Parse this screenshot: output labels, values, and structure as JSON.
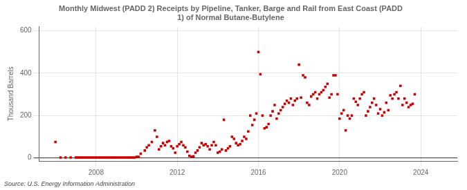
{
  "chart_data": {
    "type": "scatter",
    "title": "Monthly Midwest (PADD 2) Receipts by Pipeline, Tanker, Barge and Rail from East Coast (PADD\n1) of Normal Butane-Butylene",
    "ylabel": "Thousand Barrels",
    "source": "Source: U.S. Energy Information Administration",
    "color": "#cc0000",
    "marker": "square",
    "grid": true,
    "ylim": [
      -15,
      620
    ],
    "yticks": [
      0,
      200,
      400,
      600
    ],
    "xlim": [
      2005.2,
      2025.8
    ],
    "xticks": [
      2008,
      2012,
      2016,
      2020,
      2024
    ],
    "x": [
      2006.0,
      2006.25,
      2006.5,
      2006.75,
      2007.0,
      2007.1,
      2007.2,
      2007.3,
      2007.4,
      2007.5,
      2007.6,
      2007.7,
      2007.8,
      2007.9,
      2008.0,
      2008.1,
      2008.2,
      2008.3,
      2008.4,
      2008.5,
      2008.6,
      2008.7,
      2008.8,
      2008.9,
      2009.0,
      2009.1,
      2009.2,
      2009.3,
      2009.4,
      2009.5,
      2009.6,
      2009.7,
      2009.8,
      2009.9,
      2010.0,
      2010.1,
      2010.2,
      2010.4,
      2010.5,
      2010.6,
      2010.75,
      2010.9,
      2011.0,
      2011.1,
      2011.2,
      2011.3,
      2011.4,
      2011.5,
      2011.6,
      2011.7,
      2011.8,
      2011.9,
      2012.0,
      2012.1,
      2012.2,
      2012.3,
      2012.4,
      2012.5,
      2012.6,
      2012.7,
      2012.8,
      2012.9,
      2013.0,
      2013.1,
      2013.2,
      2013.3,
      2013.4,
      2013.5,
      2013.6,
      2013.7,
      2013.8,
      2013.9,
      2014.0,
      2014.1,
      2014.2,
      2014.3,
      2014.4,
      2014.5,
      2014.6,
      2014.7,
      2014.8,
      2014.9,
      2015.0,
      2015.1,
      2015.2,
      2015.3,
      2015.4,
      2015.5,
      2015.6,
      2015.7,
      2015.8,
      2015.9,
      2016.0,
      2016.1,
      2016.2,
      2016.3,
      2016.4,
      2016.5,
      2016.6,
      2016.7,
      2016.8,
      2016.9,
      2017.0,
      2017.1,
      2017.2,
      2017.3,
      2017.4,
      2017.5,
      2017.6,
      2017.7,
      2017.8,
      2017.9,
      2018.0,
      2018.1,
      2018.2,
      2018.3,
      2018.4,
      2018.5,
      2018.6,
      2018.7,
      2018.8,
      2018.9,
      2019.0,
      2019.1,
      2019.2,
      2019.3,
      2019.4,
      2019.5,
      2019.6,
      2019.7,
      2019.8,
      2019.9,
      2020.0,
      2020.1,
      2020.2,
      2020.3,
      2020.4,
      2020.5,
      2020.6,
      2020.7,
      2020.8,
      2020.9,
      2021.0,
      2021.1,
      2021.2,
      2021.3,
      2021.4,
      2021.5,
      2021.6,
      2021.7,
      2021.8,
      2021.9,
      2022.0,
      2022.1,
      2022.2,
      2022.3,
      2022.4,
      2022.5,
      2022.6,
      2022.7,
      2022.8,
      2022.9,
      2023.0,
      2023.1,
      2023.2,
      2023.3,
      2023.4,
      2023.5,
      2023.6,
      2023.7
    ],
    "values": [
      75,
      2,
      2,
      2,
      2,
      2,
      2,
      2,
      2,
      2,
      2,
      2,
      2,
      2,
      2,
      2,
      2,
      2,
      2,
      2,
      2,
      2,
      2,
      2,
      2,
      2,
      2,
      2,
      2,
      2,
      2,
      2,
      2,
      2,
      5,
      5,
      20,
      35,
      50,
      60,
      75,
      130,
      100,
      40,
      55,
      70,
      60,
      75,
      80,
      55,
      45,
      25,
      55,
      65,
      75,
      60,
      50,
      30,
      10,
      5,
      8,
      25,
      35,
      50,
      70,
      60,
      65,
      55,
      40,
      60,
      75,
      60,
      25,
      30,
      40,
      180,
      35,
      45,
      55,
      100,
      90,
      70,
      60,
      65,
      80,
      100,
      90,
      125,
      200,
      155,
      180,
      210,
      500,
      395,
      200,
      140,
      145,
      160,
      200,
      220,
      250,
      185,
      210,
      225,
      240,
      255,
      270,
      260,
      280,
      250,
      270,
      280,
      440,
      285,
      390,
      380,
      260,
      250,
      290,
      300,
      310,
      280,
      300,
      310,
      320,
      335,
      350,
      285,
      300,
      390,
      390,
      300,
      185,
      210,
      225,
      130,
      200,
      185,
      200,
      280,
      265,
      250,
      280,
      300,
      310,
      200,
      220,
      240,
      260,
      280,
      250,
      210,
      230,
      200,
      215,
      260,
      225,
      295,
      280,
      300,
      310,
      280,
      340,
      250,
      280,
      260,
      240,
      250,
      255,
      300
    ]
  }
}
